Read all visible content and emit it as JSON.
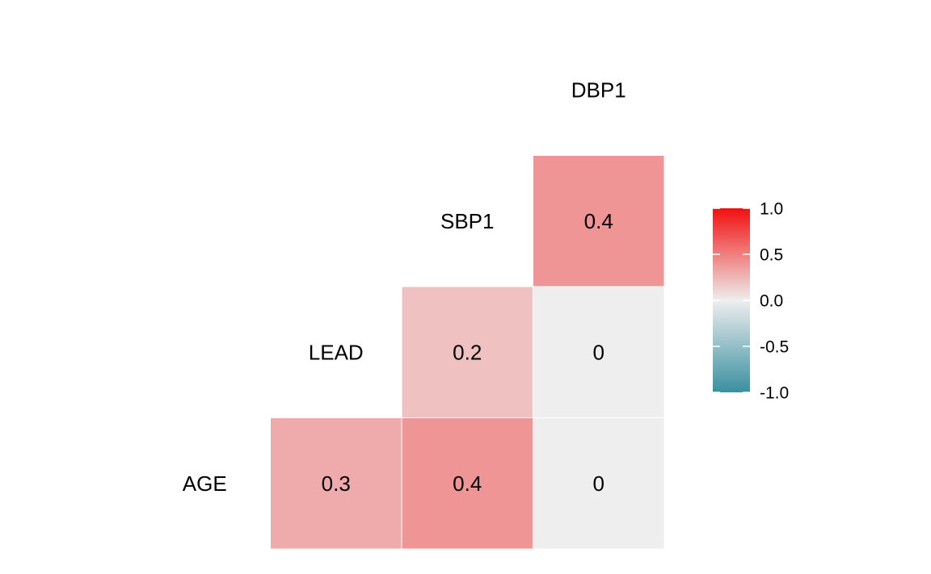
{
  "chart_data": {
    "type": "heatmap",
    "title": "",
    "variables": [
      "AGE",
      "LEAD",
      "SBP1",
      "DBP1"
    ],
    "cells": [
      {
        "row": "AGE",
        "col": "LEAD",
        "value": 0.3,
        "label": "0.3"
      },
      {
        "row": "AGE",
        "col": "SBP1",
        "value": 0.4,
        "label": "0.4"
      },
      {
        "row": "AGE",
        "col": "DBP1",
        "value": 0.0,
        "label": "0"
      },
      {
        "row": "LEAD",
        "col": "SBP1",
        "value": 0.2,
        "label": "0.2"
      },
      {
        "row": "LEAD",
        "col": "DBP1",
        "value": 0.0,
        "label": "0"
      },
      {
        "row": "SBP1",
        "col": "DBP1",
        "value": 0.4,
        "label": "0.4"
      }
    ],
    "colorbar": {
      "range": [
        -1.0,
        1.0
      ],
      "ticks": [
        1.0,
        0.5,
        0.0,
        -0.5,
        -1.0
      ],
      "tick_labels": [
        "1.0",
        "0.5",
        "0.0",
        "-0.5",
        "-1.0"
      ],
      "colors": {
        "low": "#3A8FA0",
        "mid": "#EEEEEE",
        "high": "#F20F0F"
      }
    },
    "legend_position": "right",
    "grid": false
  }
}
